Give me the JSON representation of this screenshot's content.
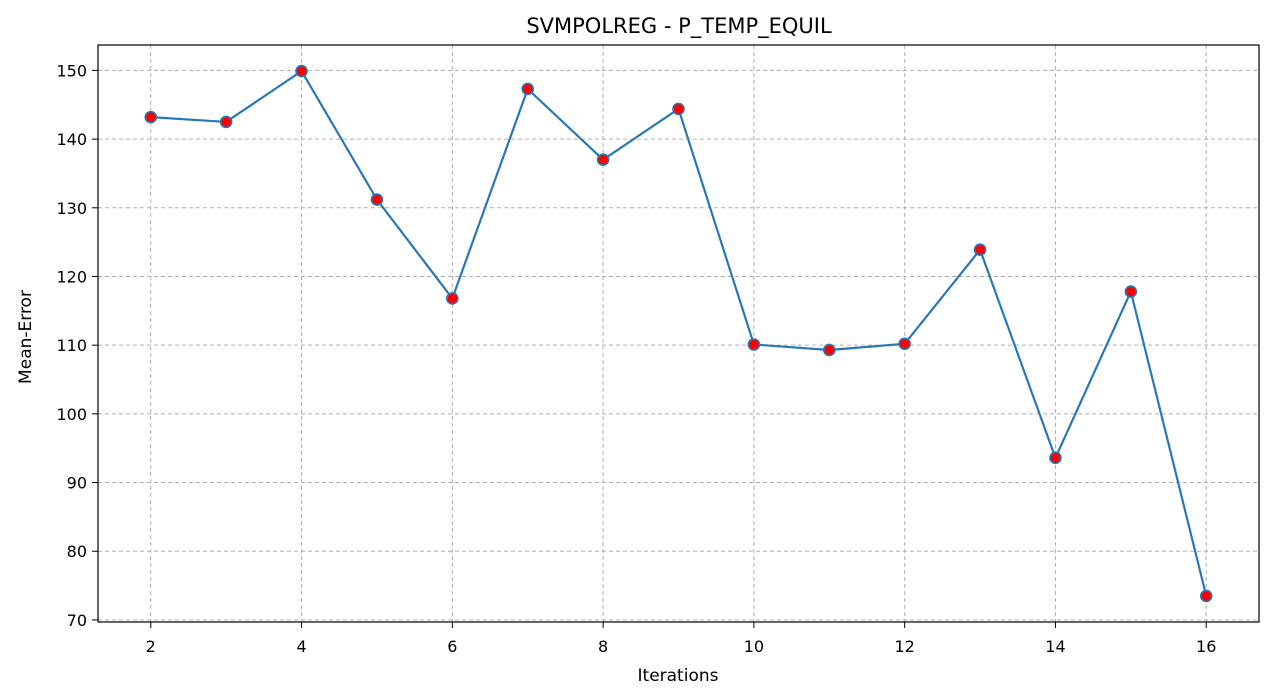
{
  "chart_data": {
    "type": "line",
    "title": "SVMPOLREG - P_TEMP_EQUIL",
    "xlabel": "Iterations",
    "ylabel": "Mean-Error",
    "xlim": [
      1.3,
      16.7
    ],
    "ylim": [
      69.7,
      153.7
    ],
    "xticks": [
      2,
      4,
      6,
      8,
      10,
      12,
      14,
      16
    ],
    "yticks": [
      70,
      80,
      90,
      100,
      110,
      120,
      130,
      140,
      150
    ],
    "grid": true,
    "grid_style": "dashed",
    "line_color": "#2878b5",
    "marker_color": "#ff0000",
    "series": [
      {
        "x": [
          2,
          3,
          4,
          5,
          6,
          7,
          8,
          9,
          10,
          11,
          12,
          13,
          14,
          15,
          16
        ],
        "values": [
          143.2,
          142.5,
          149.9,
          131.2,
          116.8,
          147.3,
          137.0,
          144.4,
          110.1,
          109.3,
          110.2,
          123.9,
          93.6,
          117.8,
          73.5
        ]
      }
    ]
  }
}
